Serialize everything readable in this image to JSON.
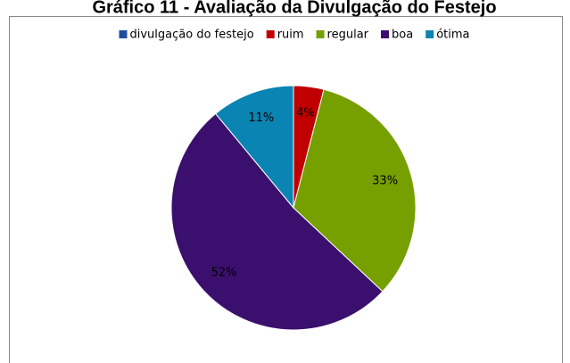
{
  "chart_data": {
    "type": "pie",
    "title": "Gráfico 11 - Avaliação da Divulgação do Festejo",
    "categories": [
      "divulgação do festejo",
      "ruim",
      "regular",
      "boa",
      "ótima"
    ],
    "values": [
      null,
      4,
      33,
      52,
      11
    ],
    "value_labels": [
      null,
      "4%",
      "33%",
      "52%",
      "11%"
    ],
    "colors": [
      "#1f4e9c",
      "#c00000",
      "#76a000",
      "#3b0f6e",
      "#0a84b2"
    ],
    "legend": "top"
  }
}
